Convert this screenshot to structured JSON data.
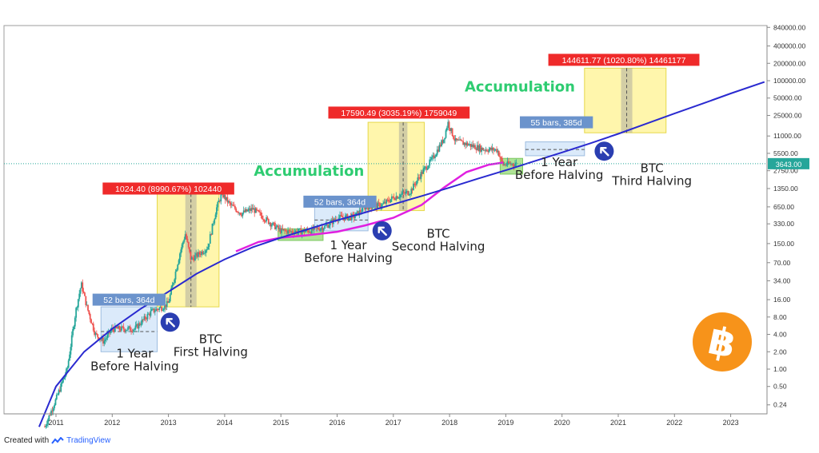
{
  "footer": {
    "created_with": "Created with",
    "brand": "TradingView"
  },
  "colors": {
    "up": "#26a69a",
    "down": "#ef5350",
    "blue_line": "#2a2ad0",
    "magenta_line": "#e020e0",
    "zone_yellow": "#fff59d",
    "zone_blue": "#cfe3f8",
    "zone_green": "#a5e08a",
    "accumulation_text": "#2ecc71",
    "label_red": "#ef2a2a",
    "label_blue": "#6b93cc",
    "price_marker": "#26a69a",
    "bitcoin_orange": "#f7931a",
    "arrow_circle": "#2a3eb1"
  },
  "chart_data": {
    "type": "candlestick",
    "y_scale": "log",
    "x_ticks": [
      "2011",
      "2012",
      "2013",
      "2014",
      "2015",
      "2016",
      "2017",
      "2018",
      "2019",
      "2020",
      "2021",
      "2022",
      "2023"
    ],
    "y_ticks": [
      "840000.00",
      "400000.00",
      "200000.00",
      "100000.00",
      "50000.00",
      "25000.00",
      "11000.00",
      "5500.00",
      "2750.00",
      "1350.00",
      "650.00",
      "330.00",
      "150.00",
      "70.00",
      "34.00",
      "16.00",
      "8.00",
      "4.00",
      "2.00",
      "1.00",
      "0.50",
      "0.24"
    ],
    "current_price": "3643.00",
    "price_path": [
      [
        2010.8,
        0.1
      ],
      [
        2011.0,
        0.3
      ],
      [
        2011.2,
        1.0
      ],
      [
        2011.35,
        10
      ],
      [
        2011.45,
        30
      ],
      [
        2011.55,
        12
      ],
      [
        2011.7,
        4
      ],
      [
        2011.85,
        3
      ],
      [
        2012.0,
        5
      ],
      [
        2012.4,
        5
      ],
      [
        2012.7,
        10
      ],
      [
        2012.9,
        12
      ],
      [
        2013.0,
        14
      ],
      [
        2013.2,
        100
      ],
      [
        2013.3,
        220
      ],
      [
        2013.4,
        80
      ],
      [
        2013.55,
        100
      ],
      [
        2013.7,
        130
      ],
      [
        2013.85,
        600
      ],
      [
        2013.95,
        1100
      ],
      [
        2014.1,
        700
      ],
      [
        2014.3,
        500
      ],
      [
        2014.5,
        600
      ],
      [
        2014.8,
        350
      ],
      [
        2015.0,
        250
      ],
      [
        2015.2,
        240
      ],
      [
        2015.5,
        250
      ],
      [
        2015.8,
        300
      ],
      [
        2016.0,
        420
      ],
      [
        2016.3,
        440
      ],
      [
        2016.5,
        650
      ],
      [
        2016.8,
        700
      ],
      [
        2017.0,
        950
      ],
      [
        2017.3,
        1200
      ],
      [
        2017.5,
        2500
      ],
      [
        2017.7,
        4500
      ],
      [
        2017.9,
        10000
      ],
      [
        2017.97,
        19000
      ],
      [
        2018.1,
        9000
      ],
      [
        2018.3,
        8000
      ],
      [
        2018.6,
        6500
      ],
      [
        2018.85,
        6300
      ],
      [
        2018.95,
        3500
      ],
      [
        2019.1,
        3600
      ],
      [
        2019.2,
        3643
      ]
    ],
    "blue_curve": [
      [
        2010.7,
        0.1
      ],
      [
        2011,
        0.5
      ],
      [
        2011.5,
        2
      ],
      [
        2012,
        5
      ],
      [
        2012.5,
        11
      ],
      [
        2013,
        22
      ],
      [
        2013.5,
        45
      ],
      [
        2014,
        80
      ],
      [
        2014.5,
        130
      ],
      [
        2015,
        190
      ],
      [
        2015.5,
        270
      ],
      [
        2016,
        380
      ],
      [
        2016.5,
        520
      ],
      [
        2017,
        720
      ],
      [
        2017.5,
        1000
      ],
      [
        2018,
        1400
      ],
      [
        2018.5,
        2000
      ],
      [
        2019,
        2800
      ],
      [
        2019.5,
        4000
      ],
      [
        2020,
        5700
      ],
      [
        2020.5,
        8200
      ],
      [
        2021,
        12000
      ],
      [
        2021.5,
        18000
      ],
      [
        2022,
        27000
      ],
      [
        2022.5,
        40000
      ],
      [
        2023,
        60000
      ],
      [
        2023.6,
        95000
      ]
    ],
    "magenta_curve": [
      [
        2014.2,
        110
      ],
      [
        2014.6,
        160
      ],
      [
        2015,
        190
      ],
      [
        2015.5,
        210
      ],
      [
        2016,
        240
      ],
      [
        2016.5,
        310
      ],
      [
        2017,
        420
      ],
      [
        2017.5,
        700
      ],
      [
        2017.9,
        1400
      ],
      [
        2018.3,
        2600
      ],
      [
        2018.7,
        3500
      ],
      [
        2018.95,
        3800
      ]
    ],
    "zones": [
      {
        "kind": "blue",
        "x0": 2011.8,
        "x1": 2012.8,
        "y0": 2.0,
        "y1": 12.0
      },
      {
        "kind": "yellow",
        "x0": 2012.8,
        "x1": 2013.9,
        "y0": 12.0,
        "y1": 1100
      },
      {
        "kind": "gray",
        "x0": 2013.3,
        "x1": 2013.5,
        "y0": 12.0,
        "y1": 1100
      },
      {
        "kind": "green",
        "x0": 2014.95,
        "x1": 2015.75,
        "y0": 170,
        "y1": 270
      },
      {
        "kind": "blue",
        "x0": 2015.6,
        "x1": 2016.55,
        "y0": 250,
        "y1": 650
      },
      {
        "kind": "yellow",
        "x0": 2016.55,
        "x1": 2017.55,
        "y0": 560,
        "y1": 19000
      },
      {
        "kind": "gray",
        "x0": 2017.1,
        "x1": 2017.25,
        "y0": 560,
        "y1": 19000
      },
      {
        "kind": "green",
        "x0": 2018.9,
        "x1": 2019.3,
        "y0": 2400,
        "y1": 4500
      },
      {
        "kind": "blue",
        "x0": 2019.35,
        "x1": 2020.4,
        "y0": 5000,
        "y1": 8700
      },
      {
        "kind": "yellow",
        "x0": 2020.4,
        "x1": 2021.85,
        "y0": 12500,
        "y1": 165000
      },
      {
        "kind": "gray",
        "x0": 2021.05,
        "x1": 2021.25,
        "y0": 12500,
        "y1": 165000
      }
    ],
    "labels": [
      {
        "kind": "blue",
        "text": "52 bars, 364d",
        "x": 2012.3,
        "y": 16
      },
      {
        "kind": "red",
        "text": "1024.40 (8990.67%) 102440",
        "x": 2013.0,
        "y": 1350
      },
      {
        "kind": "blue",
        "text": "52 bars, 364d",
        "x": 2016.05,
        "y": 800
      },
      {
        "kind": "red",
        "text": "17590.49 (3035.19%) 1759049",
        "x": 2017.1,
        "y": 28000
      },
      {
        "kind": "blue",
        "text": "55 bars, 385d",
        "x": 2019.9,
        "y": 19000
      },
      {
        "kind": "red",
        "text": "144611.77 (1020.80%) 14461177",
        "x": 2021.1,
        "y": 230000
      }
    ],
    "annotations": [
      {
        "lines": [
          "1 Year",
          "Before Halving"
        ],
        "x": 2012.4,
        "y": 1.6
      },
      {
        "lines": [
          "BTC",
          "First Halving"
        ],
        "x": 2013.75,
        "y": 2.8
      },
      {
        "lines": [
          "1 Year",
          "Before Halving"
        ],
        "x": 2016.2,
        "y": 120
      },
      {
        "lines": [
          "BTC",
          "Second Halving"
        ],
        "x": 2017.8,
        "y": 190
      },
      {
        "lines": [
          "1 Year",
          "Before Halving"
        ],
        "x": 2019.95,
        "y": 3300
      },
      {
        "lines": [
          "BTC",
          "Third Halving"
        ],
        "x": 2021.6,
        "y": 2600
      }
    ],
    "accumulation": [
      {
        "text": "Accumulation",
        "x": 2015.5,
        "y": 2250
      },
      {
        "text": "Accumulation",
        "x": 2019.25,
        "y": 65000
      }
    ],
    "arrow_markers": [
      {
        "x": 2013.03,
        "y": 6.5
      },
      {
        "x": 2016.8,
        "y": 250
      },
      {
        "x": 2020.75,
        "y": 6000
      }
    ]
  }
}
